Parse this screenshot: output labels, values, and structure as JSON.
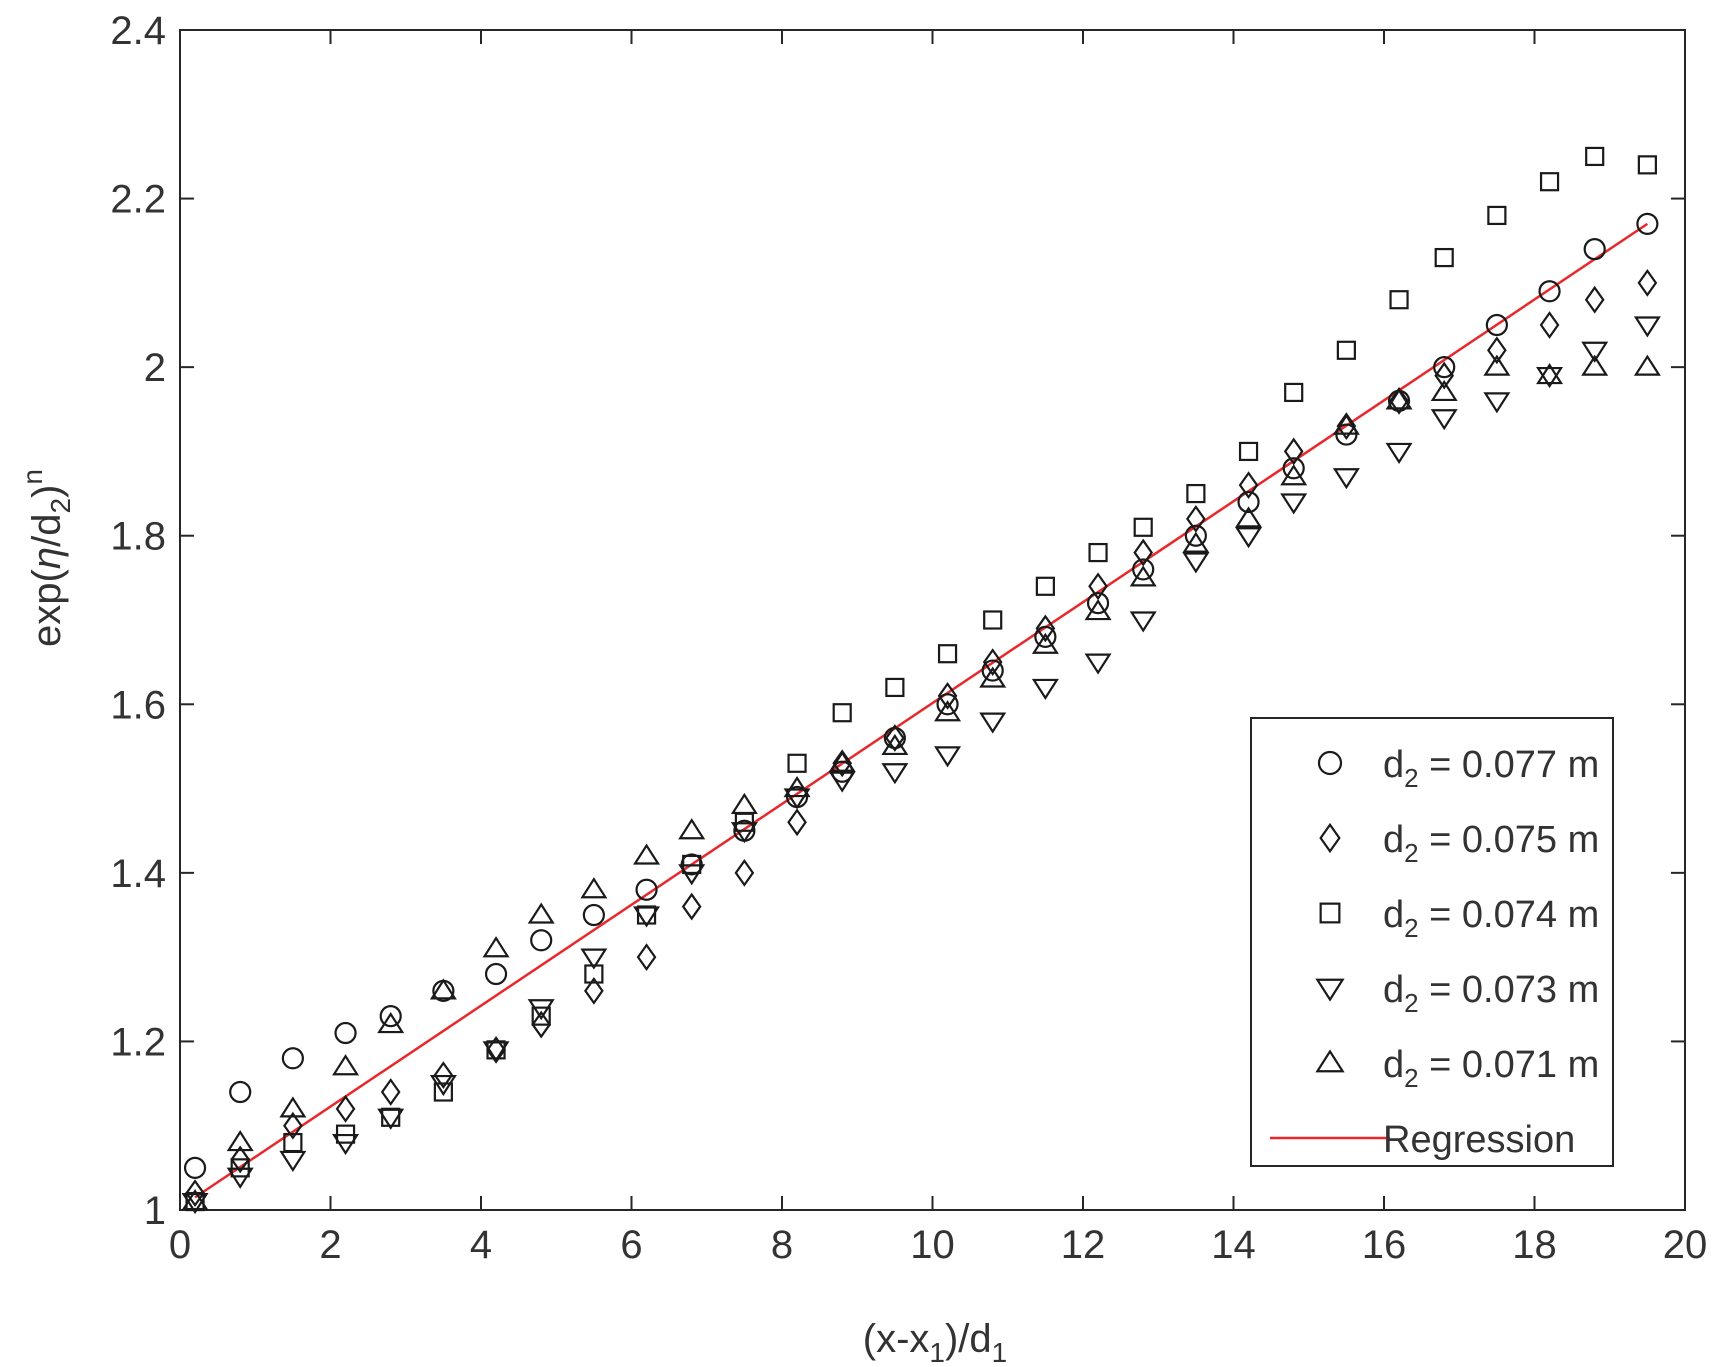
{
  "chart_data": {
    "type": "scatter",
    "title": "",
    "xlabel": {
      "base": "(x-x",
      "sub": "1",
      "rest": ")/d",
      "sub2": "1"
    },
    "ylabel": {
      "p1": "exp(",
      "eta": "η",
      "p2": "/d",
      "sub": "2",
      "p3": ")",
      "sup": "n"
    },
    "xlim": [
      0,
      20
    ],
    "ylim": [
      1,
      2.4
    ],
    "xticks": [
      0,
      2,
      4,
      6,
      8,
      10,
      12,
      14,
      16,
      18,
      20
    ],
    "yticks": [
      1,
      1.2,
      1.4,
      1.6,
      1.8,
      2,
      2.2,
      2.4
    ],
    "xtick_labels": [
      "0",
      "2",
      "4",
      "6",
      "8",
      "10",
      "12",
      "14",
      "16",
      "18",
      "20"
    ],
    "ytick_labels": [
      "1",
      "1.2",
      "1.4",
      "1.6",
      "1.8",
      "2",
      "2.2",
      "2.4"
    ],
    "grid": false,
    "legend_position": "bottom-right",
    "x": [
      0.2,
      0.8,
      1.5,
      2.2,
      2.8,
      3.5,
      4.2,
      4.8,
      5.5,
      6.2,
      6.8,
      7.5,
      8.2,
      8.8,
      9.5,
      10.2,
      10.8,
      11.5,
      12.2,
      12.8,
      13.5,
      14.2,
      14.8,
      15.5,
      16.2,
      16.8,
      17.5,
      18.2,
      18.8,
      19.5
    ],
    "series": [
      {
        "name": "d₂ = 0.077 m",
        "label_pre": "d",
        "label_sub": "2",
        "label_post": " = 0.077 m",
        "marker": "circle",
        "values": [
          1.05,
          1.14,
          1.18,
          1.21,
          1.23,
          1.26,
          1.28,
          1.32,
          1.35,
          1.38,
          1.41,
          1.45,
          1.49,
          1.52,
          1.56,
          1.6,
          1.64,
          1.68,
          1.72,
          1.76,
          1.8,
          1.84,
          1.88,
          1.92,
          1.96,
          2.0,
          2.05,
          2.09,
          2.14,
          2.17
        ]
      },
      {
        "name": "d₂ = 0.075 m",
        "label_pre": "d",
        "label_sub": "2",
        "label_post": " = 0.075 m",
        "marker": "diamond",
        "values": [
          1.02,
          1.06,
          1.1,
          1.12,
          1.14,
          1.16,
          1.19,
          1.22,
          1.26,
          1.3,
          1.36,
          1.4,
          1.46,
          1.53,
          1.56,
          1.61,
          1.65,
          1.69,
          1.74,
          1.78,
          1.82,
          1.86,
          1.9,
          1.93,
          1.96,
          1.99,
          2.02,
          2.05,
          2.08,
          2.1
        ]
      },
      {
        "name": "d₂ = 0.074 m",
        "label_pre": "d",
        "label_sub": "2",
        "label_post": " = 0.074 m",
        "marker": "square",
        "values": [
          1.01,
          1.05,
          1.08,
          1.09,
          1.11,
          1.14,
          1.19,
          1.23,
          1.28,
          1.35,
          1.41,
          1.46,
          1.53,
          1.59,
          1.62,
          1.66,
          1.7,
          1.74,
          1.78,
          1.81,
          1.85,
          1.9,
          1.97,
          2.02,
          2.08,
          2.13,
          2.18,
          2.22,
          2.25,
          2.24
        ]
      },
      {
        "name": "d₂ = 0.073 m",
        "label_pre": "d",
        "label_sub": "2",
        "label_post": " = 0.073 m",
        "marker": "triangle-down",
        "values": [
          1.01,
          1.04,
          1.06,
          1.08,
          1.11,
          1.15,
          1.19,
          1.24,
          1.3,
          1.35,
          1.4,
          1.45,
          1.49,
          1.51,
          1.52,
          1.54,
          1.58,
          1.62,
          1.65,
          1.7,
          1.77,
          1.8,
          1.84,
          1.87,
          1.9,
          1.94,
          1.96,
          1.99,
          2.02,
          2.05
        ]
      },
      {
        "name": "d₂ = 0.071 m",
        "label_pre": "d",
        "label_sub": "2",
        "label_post": " = 0.071 m",
        "marker": "triangle-up",
        "values": [
          1.01,
          1.08,
          1.12,
          1.17,
          1.22,
          1.26,
          1.31,
          1.35,
          1.38,
          1.42,
          1.45,
          1.48,
          1.5,
          1.53,
          1.55,
          1.59,
          1.63,
          1.67,
          1.71,
          1.75,
          1.79,
          1.82,
          1.87,
          1.93,
          1.96,
          1.97,
          2.0,
          1.99,
          2.0,
          2.0
        ]
      }
    ],
    "regression": {
      "name": "Regression",
      "color": "#e8282b",
      "x": [
        0.2,
        19.5
      ],
      "y": [
        1.015,
        2.17
      ]
    }
  }
}
